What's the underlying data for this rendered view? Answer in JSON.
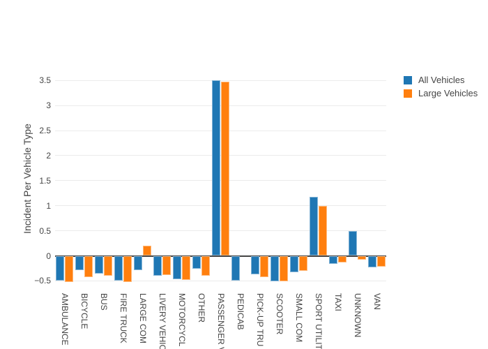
{
  "colors": {
    "all_vehicles": "#1f77b4",
    "large_vehicles": "#ff7f0e",
    "text": "#444444",
    "grid": "#ebebeb",
    "zeroline": "#444444",
    "background": "#ffffff"
  },
  "legend": {
    "items": [
      {
        "label": "All Vehicles",
        "color": "#1f77b4"
      },
      {
        "label": "Large Vehicles",
        "color": "#ff7f0e"
      }
    ]
  },
  "chart_data": {
    "type": "bar",
    "title": "",
    "xlabel": "",
    "ylabel": "Incident Per Vehicle Type",
    "ylim": [
      -0.62,
      3.71
    ],
    "yticks": [
      -0.5,
      0,
      0.5,
      1,
      1.5,
      2,
      2.5,
      3,
      3.5
    ],
    "grid": true,
    "legend_position": "top-right",
    "categories": [
      "AMBULANCE",
      "BICYCLE",
      "BUS",
      "FIRE TRUCK",
      "LARGE COM",
      "LIVERY VEHIC",
      "MOTORCYCL",
      "OTHER",
      "PASSENGER V",
      "PEDICAB",
      "PICK-UP TRU",
      "SCOOTER",
      "SMALL COM",
      "SPORT UTILIT",
      "TAXI",
      "UNKNOWN",
      "VAN"
    ],
    "series": [
      {
        "name": "All Vehicles",
        "color": "#1f77b4",
        "values": [
          -0.49,
          -0.29,
          -0.36,
          -0.49,
          -0.29,
          -0.4,
          -0.46,
          -0.26,
          3.5,
          -0.5,
          -0.37,
          -0.51,
          -0.33,
          1.17,
          -0.16,
          0.49,
          -0.23
        ]
      },
      {
        "name": "Large Vehicles",
        "color": "#ff7f0e",
        "values": [
          -0.52,
          -0.43,
          -0.4,
          -0.52,
          0.2,
          -0.38,
          -0.48,
          -0.4,
          3.47,
          0,
          -0.43,
          -0.51,
          -0.3,
          1.0,
          -0.13,
          -0.08,
          -0.21
        ]
      }
    ]
  }
}
